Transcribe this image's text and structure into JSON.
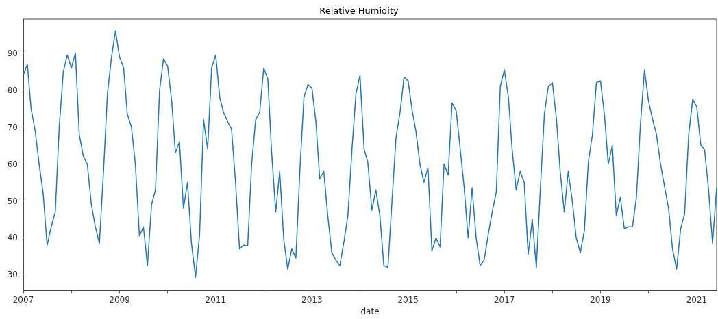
{
  "chart_data": {
    "type": "line",
    "title": "Relative Humidity",
    "xlabel": "date",
    "x": [
      "2007-01",
      "2007-02",
      "2007-03",
      "2007-04",
      "2007-05",
      "2007-06",
      "2007-07",
      "2007-08",
      "2007-09",
      "2007-10",
      "2007-11",
      "2007-12",
      "2008-01",
      "2008-02",
      "2008-03",
      "2008-04",
      "2008-05",
      "2008-06",
      "2008-07",
      "2008-08",
      "2008-09",
      "2008-10",
      "2008-11",
      "2008-12",
      "2009-01",
      "2009-02",
      "2009-03",
      "2009-04",
      "2009-05",
      "2009-06",
      "2009-07",
      "2009-08",
      "2009-09",
      "2009-10",
      "2009-11",
      "2009-12",
      "2010-01",
      "2010-02",
      "2010-03",
      "2010-04",
      "2010-05",
      "2010-06",
      "2010-07",
      "2010-08",
      "2010-09",
      "2010-10",
      "2010-11",
      "2010-12",
      "2011-01",
      "2011-02",
      "2011-03",
      "2011-04",
      "2011-05",
      "2011-06",
      "2011-07",
      "2011-08",
      "2011-09",
      "2011-10",
      "2011-11",
      "2011-12",
      "2012-01",
      "2012-02",
      "2012-03",
      "2012-04",
      "2012-05",
      "2012-06",
      "2012-07",
      "2012-08",
      "2012-09",
      "2012-10",
      "2012-11",
      "2012-12",
      "2013-01",
      "2013-02",
      "2013-03",
      "2013-04",
      "2013-05",
      "2013-06",
      "2013-07",
      "2013-08",
      "2013-09",
      "2013-10",
      "2013-11",
      "2013-12",
      "2014-01",
      "2014-02",
      "2014-03",
      "2014-04",
      "2014-05",
      "2014-06",
      "2014-07",
      "2014-08",
      "2014-09",
      "2014-10",
      "2014-11",
      "2014-12",
      "2015-01",
      "2015-02",
      "2015-03",
      "2015-04",
      "2015-05",
      "2015-06",
      "2015-07",
      "2015-08",
      "2015-09",
      "2015-10",
      "2015-11",
      "2015-12",
      "2016-01",
      "2016-02",
      "2016-03",
      "2016-04",
      "2016-05",
      "2016-06",
      "2016-07",
      "2016-08",
      "2016-09",
      "2016-10",
      "2016-11",
      "2016-12",
      "2017-01",
      "2017-02",
      "2017-03",
      "2017-04",
      "2017-05",
      "2017-06",
      "2017-07",
      "2017-08",
      "2017-09",
      "2017-10",
      "2017-11",
      "2017-12",
      "2018-01",
      "2018-02",
      "2018-03",
      "2018-04",
      "2018-05",
      "2018-06",
      "2018-07",
      "2018-08",
      "2018-09",
      "2018-10",
      "2018-11",
      "2018-12",
      "2019-01",
      "2019-02",
      "2019-03",
      "2019-04",
      "2019-05",
      "2019-06",
      "2019-07",
      "2019-08",
      "2019-09",
      "2019-10",
      "2019-11",
      "2019-12",
      "2020-01",
      "2020-02",
      "2020-03",
      "2020-04",
      "2020-05",
      "2020-06",
      "2020-07",
      "2020-08",
      "2020-09",
      "2020-10",
      "2020-11",
      "2020-12",
      "2021-01",
      "2021-02",
      "2021-03",
      "2021-04",
      "2021-05",
      "2021-06"
    ],
    "series": [
      {
        "color": "#1f77b4",
        "values": [
          84,
          87,
          75,
          69,
          60,
          52,
          38,
          43,
          47,
          70,
          85,
          89.5,
          86,
          90,
          68,
          62,
          60,
          49,
          43,
          38.5,
          58,
          79,
          89,
          96,
          89,
          86,
          73.5,
          70,
          60,
          40.5,
          43,
          32.5,
          49,
          53,
          80,
          88.5,
          86.5,
          77,
          63,
          66,
          48,
          55,
          38.5,
          29.3,
          41,
          72,
          64,
          86,
          89.5,
          78,
          74,
          71.5,
          69.5,
          55,
          37,
          38,
          37.8,
          60,
          72,
          74,
          86,
          83,
          63,
          47,
          58,
          39.5,
          31.5,
          37,
          34.5,
          58,
          78,
          81.5,
          80.5,
          71,
          56,
          58,
          46,
          36,
          34,
          32.5,
          39,
          46,
          64,
          79,
          84,
          64,
          60.5,
          47.5,
          53,
          46,
          32.5,
          32,
          50,
          67,
          74,
          83.5,
          82.5,
          74.5,
          69,
          60,
          55,
          59,
          36.5,
          40,
          37.5,
          60,
          57,
          76.5,
          74.5,
          64,
          54,
          40,
          53.5,
          40,
          32.5,
          34,
          41,
          47,
          52.5,
          81,
          85.5,
          78,
          64,
          53,
          58,
          55,
          35.5,
          45,
          32,
          53,
          73.5,
          81,
          82,
          72,
          58,
          47,
          58,
          50,
          40,
          36,
          42,
          60.5,
          68,
          82,
          82.5,
          73,
          60,
          65,
          46,
          51,
          42.5,
          43,
          43,
          51,
          71,
          85.5,
          77,
          72,
          68,
          60,
          54,
          48,
          37,
          31.5,
          42.5,
          46.5,
          68,
          77.5,
          75.5,
          65,
          64,
          53,
          38.5,
          53.5
        ]
      }
    ],
    "xlim": [
      "2007-01",
      "2021-06"
    ],
    "xticks": [
      {
        "value": "2007",
        "label": "2007"
      },
      {
        "value": "2008",
        "label": null
      },
      {
        "value": "2009",
        "label": "2009"
      },
      {
        "value": "2010",
        "label": null
      },
      {
        "value": "2011",
        "label": "2011"
      },
      {
        "value": "2012",
        "label": null
      },
      {
        "value": "2013",
        "label": "2013"
      },
      {
        "value": "2014",
        "label": null
      },
      {
        "value": "2015",
        "label": "2015"
      },
      {
        "value": "2016",
        "label": null
      },
      {
        "value": "2017",
        "label": "2017"
      },
      {
        "value": "2018",
        "label": null
      },
      {
        "value": "2019",
        "label": "2019"
      },
      {
        "value": "2020",
        "label": null
      },
      {
        "value": "2021",
        "label": "2021"
      }
    ],
    "ylim": [
      25.8,
      99.2
    ],
    "yticks": [
      30,
      40,
      50,
      60,
      70,
      80,
      90
    ],
    "grid": false,
    "marker": "none",
    "line_style": "solid"
  }
}
